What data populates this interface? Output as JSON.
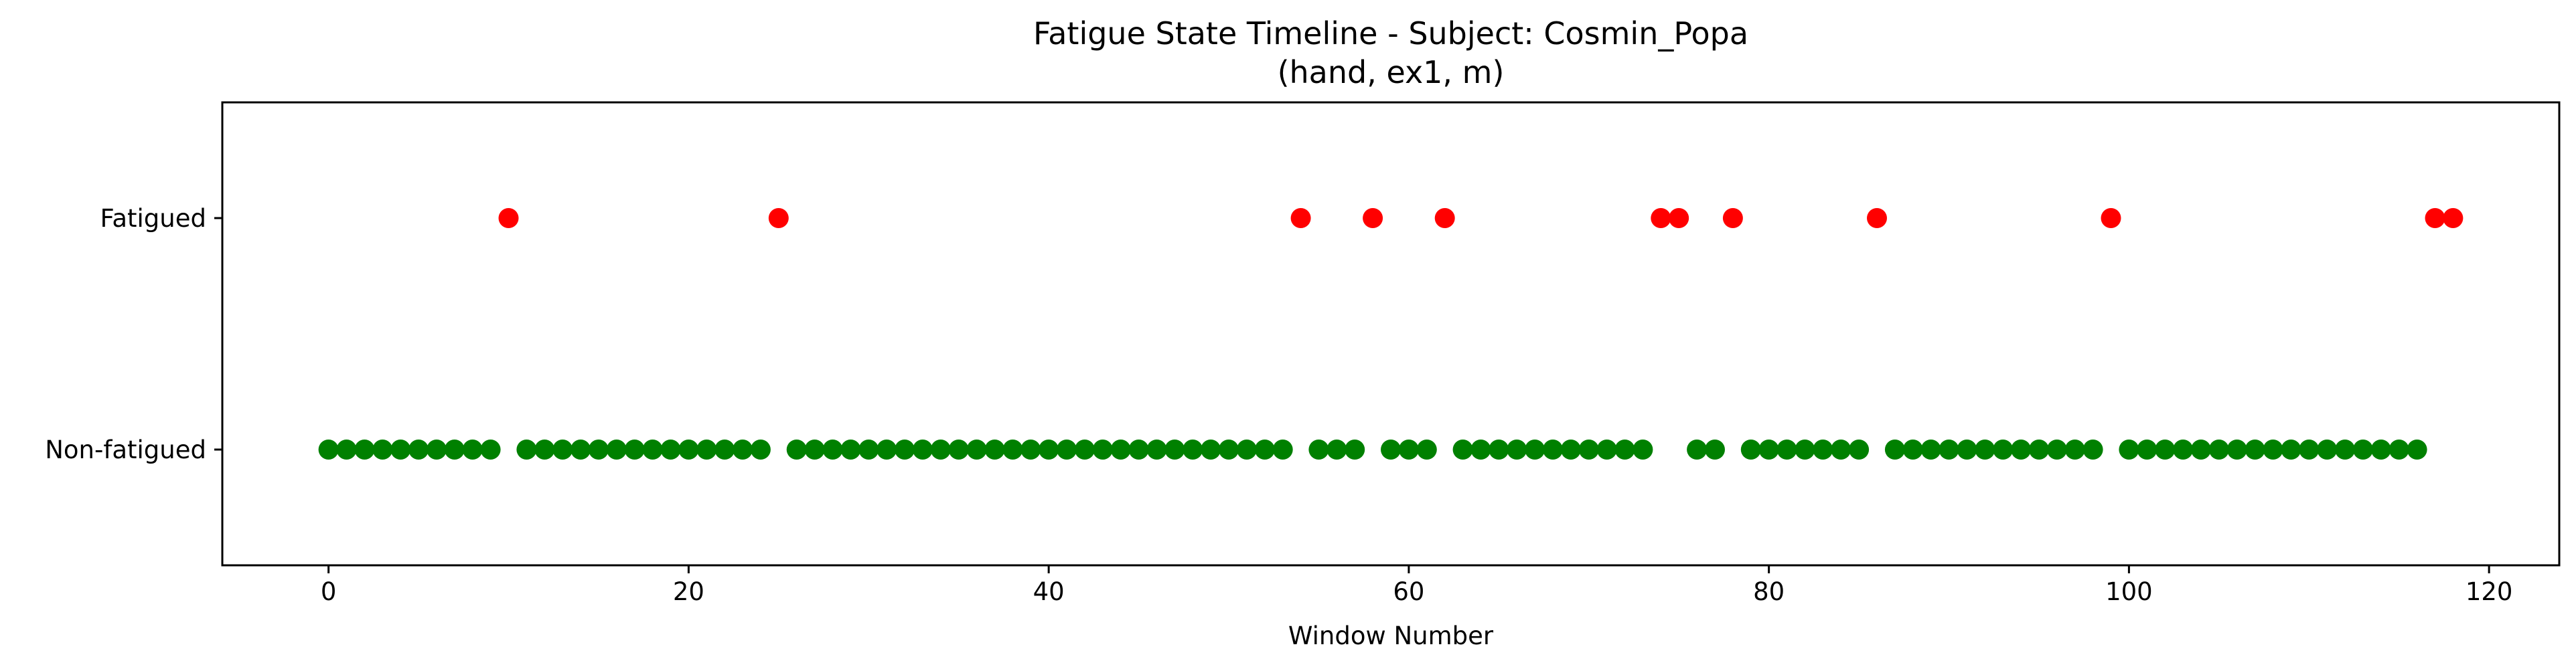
{
  "chart_data": {
    "type": "scatter",
    "title": "Fatigue State Timeline - Subject: Cosmin_Popa",
    "subtitle": "(hand, ex1, m)",
    "xlabel": "Window Number",
    "ylabel": "",
    "xlim": [
      -5.9,
      123.9
    ],
    "ylim": [
      -0.5,
      1.5
    ],
    "x_ticks": [
      0,
      20,
      40,
      60,
      80,
      100,
      120
    ],
    "y_ticks": [
      {
        "value": 1,
        "label": "Fatigued"
      },
      {
        "value": 0,
        "label": "Non-fatigued"
      }
    ],
    "grid": false,
    "legend": "none",
    "series": [
      {
        "color": "#ff0000",
        "y": 1,
        "x": [
          10,
          25,
          54,
          58,
          62,
          74,
          75,
          78,
          86,
          99,
          117,
          118
        ]
      },
      {
        "color": "#008000",
        "y": 0,
        "x": [
          0,
          1,
          2,
          3,
          4,
          5,
          6,
          7,
          8,
          9,
          11,
          12,
          13,
          14,
          15,
          16,
          17,
          18,
          19,
          20,
          21,
          22,
          23,
          24,
          26,
          27,
          28,
          29,
          30,
          31,
          32,
          33,
          34,
          35,
          36,
          37,
          38,
          39,
          40,
          41,
          42,
          43,
          44,
          45,
          46,
          47,
          48,
          49,
          50,
          51,
          52,
          53,
          55,
          56,
          57,
          59,
          60,
          61,
          63,
          64,
          65,
          66,
          67,
          68,
          69,
          70,
          71,
          72,
          73,
          76,
          77,
          79,
          80,
          81,
          82,
          83,
          84,
          85,
          87,
          88,
          89,
          90,
          91,
          92,
          93,
          94,
          95,
          96,
          97,
          98,
          100,
          101,
          102,
          103,
          104,
          105,
          106,
          107,
          108,
          109,
          110,
          111,
          112,
          113,
          114,
          115,
          116
        ]
      }
    ]
  }
}
